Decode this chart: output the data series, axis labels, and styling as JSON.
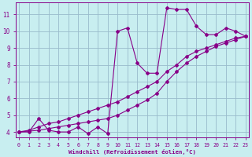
{
  "xlabel": "Windchill (Refroidissement éolien,°C)",
  "bg_color": "#c8eef0",
  "line_color": "#880088",
  "grid_color": "#99bbcc",
  "xticks": [
    0,
    1,
    2,
    3,
    4,
    5,
    6,
    7,
    8,
    9,
    10,
    11,
    12,
    13,
    14,
    15,
    16,
    17,
    18,
    19,
    20,
    21,
    22,
    23
  ],
  "yticks": [
    4,
    5,
    6,
    7,
    8,
    9,
    10,
    11
  ],
  "xlim": [
    -0.3,
    23.3
  ],
  "ylim": [
    3.7,
    11.7
  ],
  "line1_x": [
    0,
    1,
    2,
    3,
    4,
    5,
    6,
    7,
    8,
    9,
    10,
    11,
    12,
    13,
    14,
    15,
    16,
    17,
    18,
    19,
    20,
    21,
    22,
    23
  ],
  "line1_y": [
    4.0,
    4.0,
    4.8,
    4.1,
    4.0,
    4.0,
    4.3,
    3.9,
    4.3,
    3.9,
    10.0,
    10.2,
    8.1,
    7.5,
    7.5,
    11.4,
    11.3,
    11.3,
    10.3,
    9.8,
    9.8,
    10.2,
    10.0,
    9.7
  ],
  "line2_x": [
    0,
    1,
    2,
    3,
    4,
    5,
    6,
    7,
    8,
    9,
    10,
    11,
    12,
    13,
    14,
    15,
    16,
    17,
    18,
    19,
    20,
    21,
    22,
    23
  ],
  "line2_y": [
    4.0,
    4.1,
    4.3,
    4.5,
    4.6,
    4.8,
    5.0,
    5.2,
    5.4,
    5.6,
    5.8,
    6.1,
    6.4,
    6.7,
    7.0,
    7.6,
    8.0,
    8.5,
    8.8,
    9.0,
    9.2,
    9.4,
    9.6,
    9.7
  ],
  "line3_x": [
    0,
    1,
    2,
    3,
    4,
    5,
    6,
    7,
    8,
    9,
    10,
    11,
    12,
    13,
    14,
    15,
    16,
    17,
    18,
    19,
    20,
    21,
    22,
    23
  ],
  "line3_y": [
    4.0,
    4.05,
    4.1,
    4.2,
    4.3,
    4.4,
    4.5,
    4.6,
    4.7,
    4.8,
    5.0,
    5.3,
    5.6,
    5.9,
    6.3,
    7.0,
    7.6,
    8.1,
    8.5,
    8.8,
    9.1,
    9.3,
    9.5,
    9.7
  ]
}
